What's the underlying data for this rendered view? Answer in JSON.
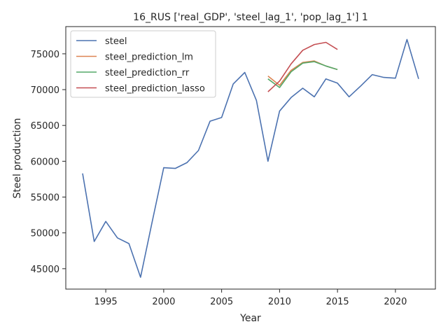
{
  "chart_data": {
    "type": "line",
    "title": "16_RUS ['real_GDP', 'steel_lag_1', 'pop_lag_1'] 1",
    "xlabel": "Year",
    "ylabel": "Steel production",
    "xlim": [
      1991.55,
      2023.45
    ],
    "ylim": [
      42150,
      78800
    ],
    "xticks": [
      1995,
      2000,
      2005,
      2010,
      2015,
      2020
    ],
    "yticks": [
      45000,
      50000,
      55000,
      60000,
      65000,
      70000,
      75000
    ],
    "grid": false,
    "legend_position": "top-left",
    "series": [
      {
        "name": "steel",
        "color": "#4c72b0",
        "x": [
          1993,
          1994,
          1995,
          1996,
          1997,
          1998,
          1999,
          2000,
          2001,
          2002,
          2003,
          2004,
          2005,
          2006,
          2007,
          2008,
          2009,
          2010,
          2011,
          2012,
          2013,
          2014,
          2015,
          2016,
          2017,
          2018,
          2019,
          2020,
          2021,
          2022
        ],
        "y": [
          58300,
          48800,
          51600,
          49300,
          48500,
          43800,
          51500,
          59100,
          59000,
          59800,
          61500,
          65600,
          66100,
          70800,
          72400,
          68500,
          60000,
          67000,
          68900,
          70200,
          69000,
          71500,
          70900,
          69000,
          70500,
          72100,
          71700,
          71600,
          77000,
          71500
        ]
      },
      {
        "name": "steel_prediction_lm",
        "color": "#dd8452",
        "x": [
          2009,
          2010,
          2011,
          2012,
          2013,
          2014,
          2015
        ],
        "y": [
          71900,
          70600,
          72700,
          73800,
          74000,
          73300,
          72800
        ]
      },
      {
        "name": "steel_prediction_rr",
        "color": "#55a868",
        "x": [
          2009,
          2010,
          2011,
          2012,
          2013,
          2014,
          2015
        ],
        "y": [
          71500,
          70300,
          72500,
          73700,
          73900,
          73300,
          72800
        ]
      },
      {
        "name": "steel_prediction_lasso",
        "color": "#c44e52",
        "x": [
          2009,
          2010,
          2011,
          2012,
          2013,
          2014,
          2015
        ],
        "y": [
          69700,
          71200,
          73600,
          75500,
          76300,
          76600,
          75600
        ]
      }
    ]
  }
}
